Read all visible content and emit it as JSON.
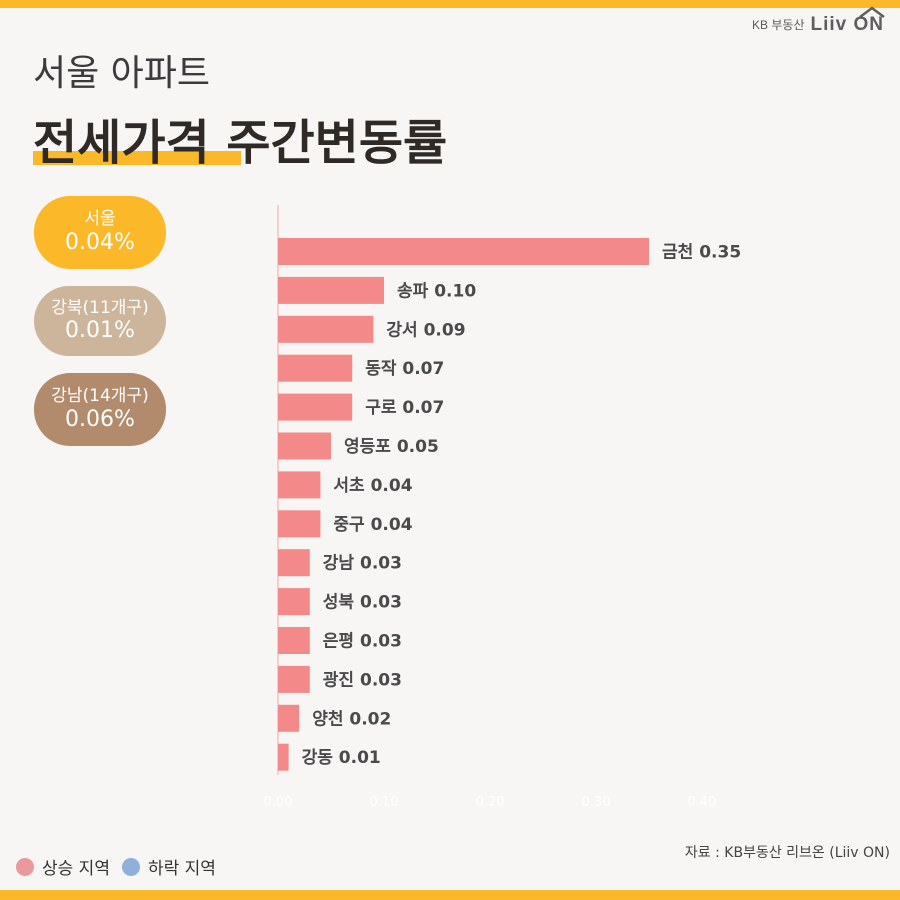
{
  "brand": {
    "kb": "KB 부동산",
    "liiv": "Liiv ON"
  },
  "subtitle": "서울 아파트",
  "title": "전세가격 주간변동률",
  "summary": [
    {
      "label": "서울",
      "value": "0.04%"
    },
    {
      "label": "강북(11개구)",
      "value": "0.01%"
    },
    {
      "label": "강남(14개구)",
      "value": "0.06%"
    }
  ],
  "source": "자료 : KB부동산 리브온 (Liiv ON)",
  "legend": [
    {
      "label": "상승 지역",
      "color": "#ea9a9c"
    },
    {
      "label": "하락 지역",
      "color": "#8fb0da"
    }
  ],
  "colors": {
    "accent": "#fbb829",
    "bar": "#f4898a",
    "north": "#cdb59b",
    "south": "#b28b6d"
  },
  "chart_data": {
    "type": "bar",
    "orientation": "horizontal",
    "title": "전세가격 주간변동률",
    "categories": [
      "금천",
      "송파",
      "강서",
      "동작",
      "구로",
      "영등포",
      "서초",
      "중구",
      "강남",
      "성북",
      "은평",
      "광진",
      "양천",
      "강동"
    ],
    "values": [
      0.35,
      0.1,
      0.09,
      0.07,
      0.07,
      0.05,
      0.04,
      0.04,
      0.03,
      0.03,
      0.03,
      0.03,
      0.02,
      0.01
    ],
    "xlim": [
      0,
      0.4
    ],
    "xticks": [
      "0.00",
      "0.10",
      "0.20",
      "0.30",
      "0.40"
    ],
    "grid": false
  }
}
